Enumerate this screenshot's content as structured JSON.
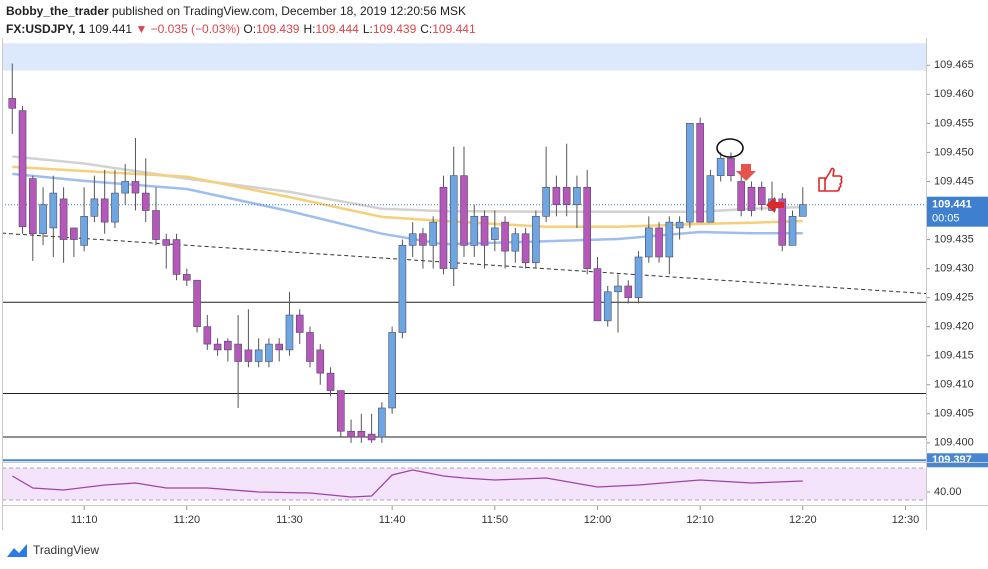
{
  "header": {
    "author": "Bobby_the_trader",
    "published": "published on TradingView.com, December 18, 2019 12:20:56 MSK",
    "symbol": "FX:USDJPY, 1",
    "last": "109.441",
    "change": "▼ −0.035 (−0.03%)",
    "ohlc": [
      {
        "key": "O:",
        "text": "109.439"
      },
      {
        "key": "H:",
        "text": "109.444"
      },
      {
        "key": "L:",
        "text": "109.439"
      },
      {
        "key": "C:",
        "text": "109.441"
      }
    ]
  },
  "chart_data": [
    {
      "type": "candlestick",
      "x": [
        "11:03",
        "11:04",
        "11:05",
        "11:06",
        "11:07",
        "11:08",
        "11:09",
        "11:10",
        "11:11",
        "11:12",
        "11:13",
        "11:14",
        "11:15",
        "11:16",
        "11:17",
        "11:18",
        "11:19",
        "11:20",
        "11:21",
        "11:22",
        "11:23",
        "11:24",
        "11:25",
        "11:26",
        "11:27",
        "11:28",
        "11:29",
        "11:30",
        "11:31",
        "11:32",
        "11:33",
        "11:34",
        "11:35",
        "11:36",
        "11:37",
        "11:38",
        "11:39",
        "11:40",
        "11:41",
        "11:42",
        "11:43",
        "11:44",
        "11:45",
        "11:46",
        "11:47",
        "11:48",
        "11:49",
        "11:50",
        "11:51",
        "11:52",
        "11:53",
        "11:54",
        "11:55",
        "11:56",
        "11:57",
        "11:58",
        "11:59",
        "12:00",
        "12:01",
        "12:02",
        "12:03",
        "12:04",
        "12:05",
        "12:06",
        "12:07",
        "12:08",
        "12:09",
        "12:10",
        "12:11",
        "12:12",
        "12:13",
        "12:14",
        "12:15",
        "12:16",
        "12:17",
        "12:18",
        "12:19",
        "12:20"
      ],
      "open": [
        109.4593,
        109.4572,
        109.4455,
        109.436,
        109.437,
        109.442,
        109.437,
        109.434,
        109.439,
        109.442,
        109.438,
        109.443,
        109.445,
        109.443,
        109.44,
        109.435,
        109.435,
        109.429,
        109.428,
        109.42,
        109.417,
        109.4175,
        109.417,
        109.416,
        109.414,
        109.414,
        109.417,
        109.416,
        109.422,
        109.419,
        109.416,
        109.412,
        109.409,
        109.402,
        109.402,
        109.4015,
        109.401,
        109.406,
        109.419,
        109.434,
        109.436,
        109.434,
        109.444,
        109.43,
        109.446,
        109.434,
        109.439,
        109.435,
        109.438,
        109.433,
        109.436,
        109.431,
        109.439,
        109.444,
        109.444,
        109.441,
        109.444,
        109.43,
        109.421,
        109.426,
        109.427,
        109.425,
        109.432,
        109.437,
        109.432,
        109.437,
        109.438,
        109.455,
        109.438,
        109.446,
        109.449,
        109.445,
        109.444,
        109.444,
        109.44,
        109.442,
        109.434,
        109.439
      ],
      "high": [
        109.4653,
        109.458,
        109.446,
        109.444,
        109.446,
        109.444,
        109.437,
        109.444,
        109.446,
        109.447,
        109.447,
        109.448,
        109.4525,
        109.449,
        109.444,
        109.436,
        109.436,
        109.43,
        109.428,
        109.422,
        109.418,
        109.418,
        109.422,
        109.423,
        109.418,
        109.418,
        109.418,
        109.426,
        109.423,
        109.42,
        109.417,
        109.413,
        109.409,
        109.404,
        109.405,
        109.405,
        109.407,
        109.42,
        109.435,
        109.438,
        109.437,
        109.439,
        109.446,
        109.451,
        109.451,
        109.441,
        109.44,
        109.44,
        109.439,
        109.437,
        109.437,
        109.44,
        109.451,
        109.446,
        109.4515,
        109.446,
        109.447,
        109.432,
        109.427,
        109.429,
        109.428,
        109.433,
        109.439,
        109.438,
        109.439,
        109.439,
        109.455,
        109.456,
        109.447,
        109.45,
        109.45,
        109.446,
        109.445,
        109.445,
        109.445,
        109.443,
        109.44,
        109.444
      ],
      "low": [
        109.4532,
        109.436,
        109.4313,
        109.434,
        109.432,
        109.431,
        109.432,
        109.433,
        109.438,
        109.436,
        109.437,
        109.441,
        109.44,
        109.438,
        109.434,
        109.43,
        109.428,
        109.427,
        109.419,
        109.416,
        109.415,
        109.414,
        109.406,
        109.413,
        109.413,
        109.413,
        109.414,
        109.415,
        109.417,
        109.413,
        109.41,
        109.408,
        109.401,
        109.4,
        109.4,
        109.4,
        109.4,
        109.405,
        109.418,
        109.432,
        109.43,
        109.43,
        109.429,
        109.427,
        109.432,
        109.432,
        109.43,
        109.433,
        109.43,
        109.431,
        109.43,
        109.43,
        109.438,
        109.439,
        109.439,
        109.437,
        109.429,
        109.421,
        109.42,
        109.419,
        109.424,
        109.424,
        109.431,
        109.431,
        109.429,
        109.435,
        109.437,
        109.438,
        109.438,
        109.445,
        109.445,
        109.439,
        109.439,
        109.44,
        109.44,
        109.433,
        109.434,
        109.439
      ],
      "close": [
        109.4576,
        109.4372,
        109.436,
        109.441,
        109.443,
        109.435,
        109.435,
        109.439,
        109.442,
        109.438,
        109.443,
        109.445,
        109.443,
        109.44,
        109.435,
        109.434,
        109.429,
        109.428,
        109.42,
        109.417,
        109.416,
        109.416,
        109.414,
        109.414,
        109.416,
        109.417,
        109.416,
        109.422,
        109.419,
        109.414,
        109.412,
        109.409,
        109.402,
        109.401,
        109.401,
        109.4005,
        109.406,
        109.419,
        109.434,
        109.436,
        109.434,
        109.438,
        109.43,
        109.446,
        109.434,
        109.439,
        109.434,
        109.437,
        109.433,
        109.436,
        109.431,
        109.439,
        109.444,
        109.441,
        109.441,
        109.444,
        109.43,
        109.421,
        109.426,
        109.427,
        109.425,
        109.432,
        109.437,
        109.432,
        109.438,
        109.438,
        109.455,
        109.438,
        109.446,
        109.449,
        109.446,
        109.44,
        109.44,
        109.441,
        109.442,
        109.434,
        109.439,
        109.441
      ],
      "up_color": "#6ea6e2",
      "down_color": "#b657ba",
      "ylim": [
        109.3967,
        109.4697
      ],
      "yticks": [
        {
          "value": 109.4,
          "label": "109.400"
        },
        109.405,
        {
          "value": 109.41,
          "label": "109.410"
        },
        109.415,
        {
          "value": 109.42,
          "label": "109.420"
        },
        109.425,
        {
          "value": 109.43,
          "label": "109.430"
        },
        109.435,
        {
          "value": 109.44,
          "label": "109.440"
        },
        109.445,
        {
          "value": 109.45,
          "label": "109.450"
        },
        109.455,
        {
          "value": 109.46,
          "label": "109.460"
        },
        109.465
      ],
      "xlim": [
        "11:02",
        "12:32"
      ],
      "xticks": [
        "11:10",
        "11:20",
        "11:30",
        "11:40",
        "11:50",
        "12:00",
        "12:10",
        "12:20",
        "12:30"
      ],
      "moving_averages": [
        {
          "color": "#d2d2d2",
          "x": [
            "11:03",
            "11:10",
            "11:20",
            "11:30",
            "11:39",
            "11:45",
            "11:55",
            "12:02",
            "12:10",
            "12:15",
            "12:20"
          ],
          "values": [
            109.4493,
            109.4481,
            109.4455,
            109.4432,
            109.4403,
            109.4399,
            109.4398,
            109.4398,
            109.4398,
            109.4403,
            109.4406
          ]
        },
        {
          "color": "#f5cf7a",
          "x": [
            "11:03",
            "11:10",
            "11:20",
            "11:30",
            "11:39",
            "11:45",
            "11:55",
            "12:02",
            "12:10",
            "12:15",
            "12:20"
          ],
          "values": [
            109.4475,
            109.4468,
            109.4458,
            109.4423,
            109.4389,
            109.4382,
            109.4372,
            109.4372,
            109.4377,
            109.4379,
            109.4382
          ]
        },
        {
          "color": "#9ebfee",
          "x": [
            "11:03",
            "11:10",
            "11:20",
            "11:30",
            "11:39",
            "11:45",
            "11:55",
            "12:02",
            "12:10",
            "12:15",
            "12:20"
          ],
          "values": [
            109.4463,
            109.4451,
            109.4437,
            109.4399,
            109.436,
            109.4342,
            109.4347,
            109.4351,
            109.4363,
            109.4361,
            109.4361
          ]
        }
      ],
      "zone": {
        "range": [
          109.4641,
          109.4688
        ],
        "color": "#dce8fb"
      },
      "levels": [
        {
          "value": 109.4242,
          "color": "#222222"
        },
        {
          "value": 109.4085,
          "color": "#222222"
        },
        {
          "value": 109.401,
          "color": "#222222"
        }
      ],
      "marked_level": {
        "value": 109.397,
        "color": "#4a86d0"
      },
      "trendline": {
        "x": [
          "11:02",
          "12:32"
        ],
        "values": [
          109.4361,
          109.4257
        ]
      },
      "last_price": 109.441,
      "countdown": "00:05",
      "last_color": "#3f7fcf"
    },
    {
      "type": "line",
      "name_hidden": false,
      "x": [
        "11:03",
        "11:05",
        "11:08",
        "11:12",
        "11:15",
        "11:18",
        "11:22",
        "11:27",
        "11:32",
        "11:36",
        "11:38",
        "11:40",
        "11:42",
        "11:45",
        "11:47",
        "11:50",
        "11:55",
        "12:00",
        "12:04",
        "12:10",
        "12:15",
        "12:20"
      ],
      "values": [
        60,
        45,
        42.5,
        48.75,
        51.25,
        45,
        45,
        40,
        38.75,
        33.75,
        35,
        61.25,
        67.5,
        60,
        57.5,
        55,
        57.5,
        46.25,
        48.75,
        55,
        51.25,
        53.75
      ],
      "color": "#a144a8",
      "band": [
        30,
        70
      ],
      "band_color": "#f3e3fb",
      "ylim": [
        23.75,
        76.25
      ],
      "yticks": [
        {
          "value": 40,
          "label": "40.00"
        }
      ]
    }
  ],
  "footer": {
    "brand": "TradingView"
  }
}
